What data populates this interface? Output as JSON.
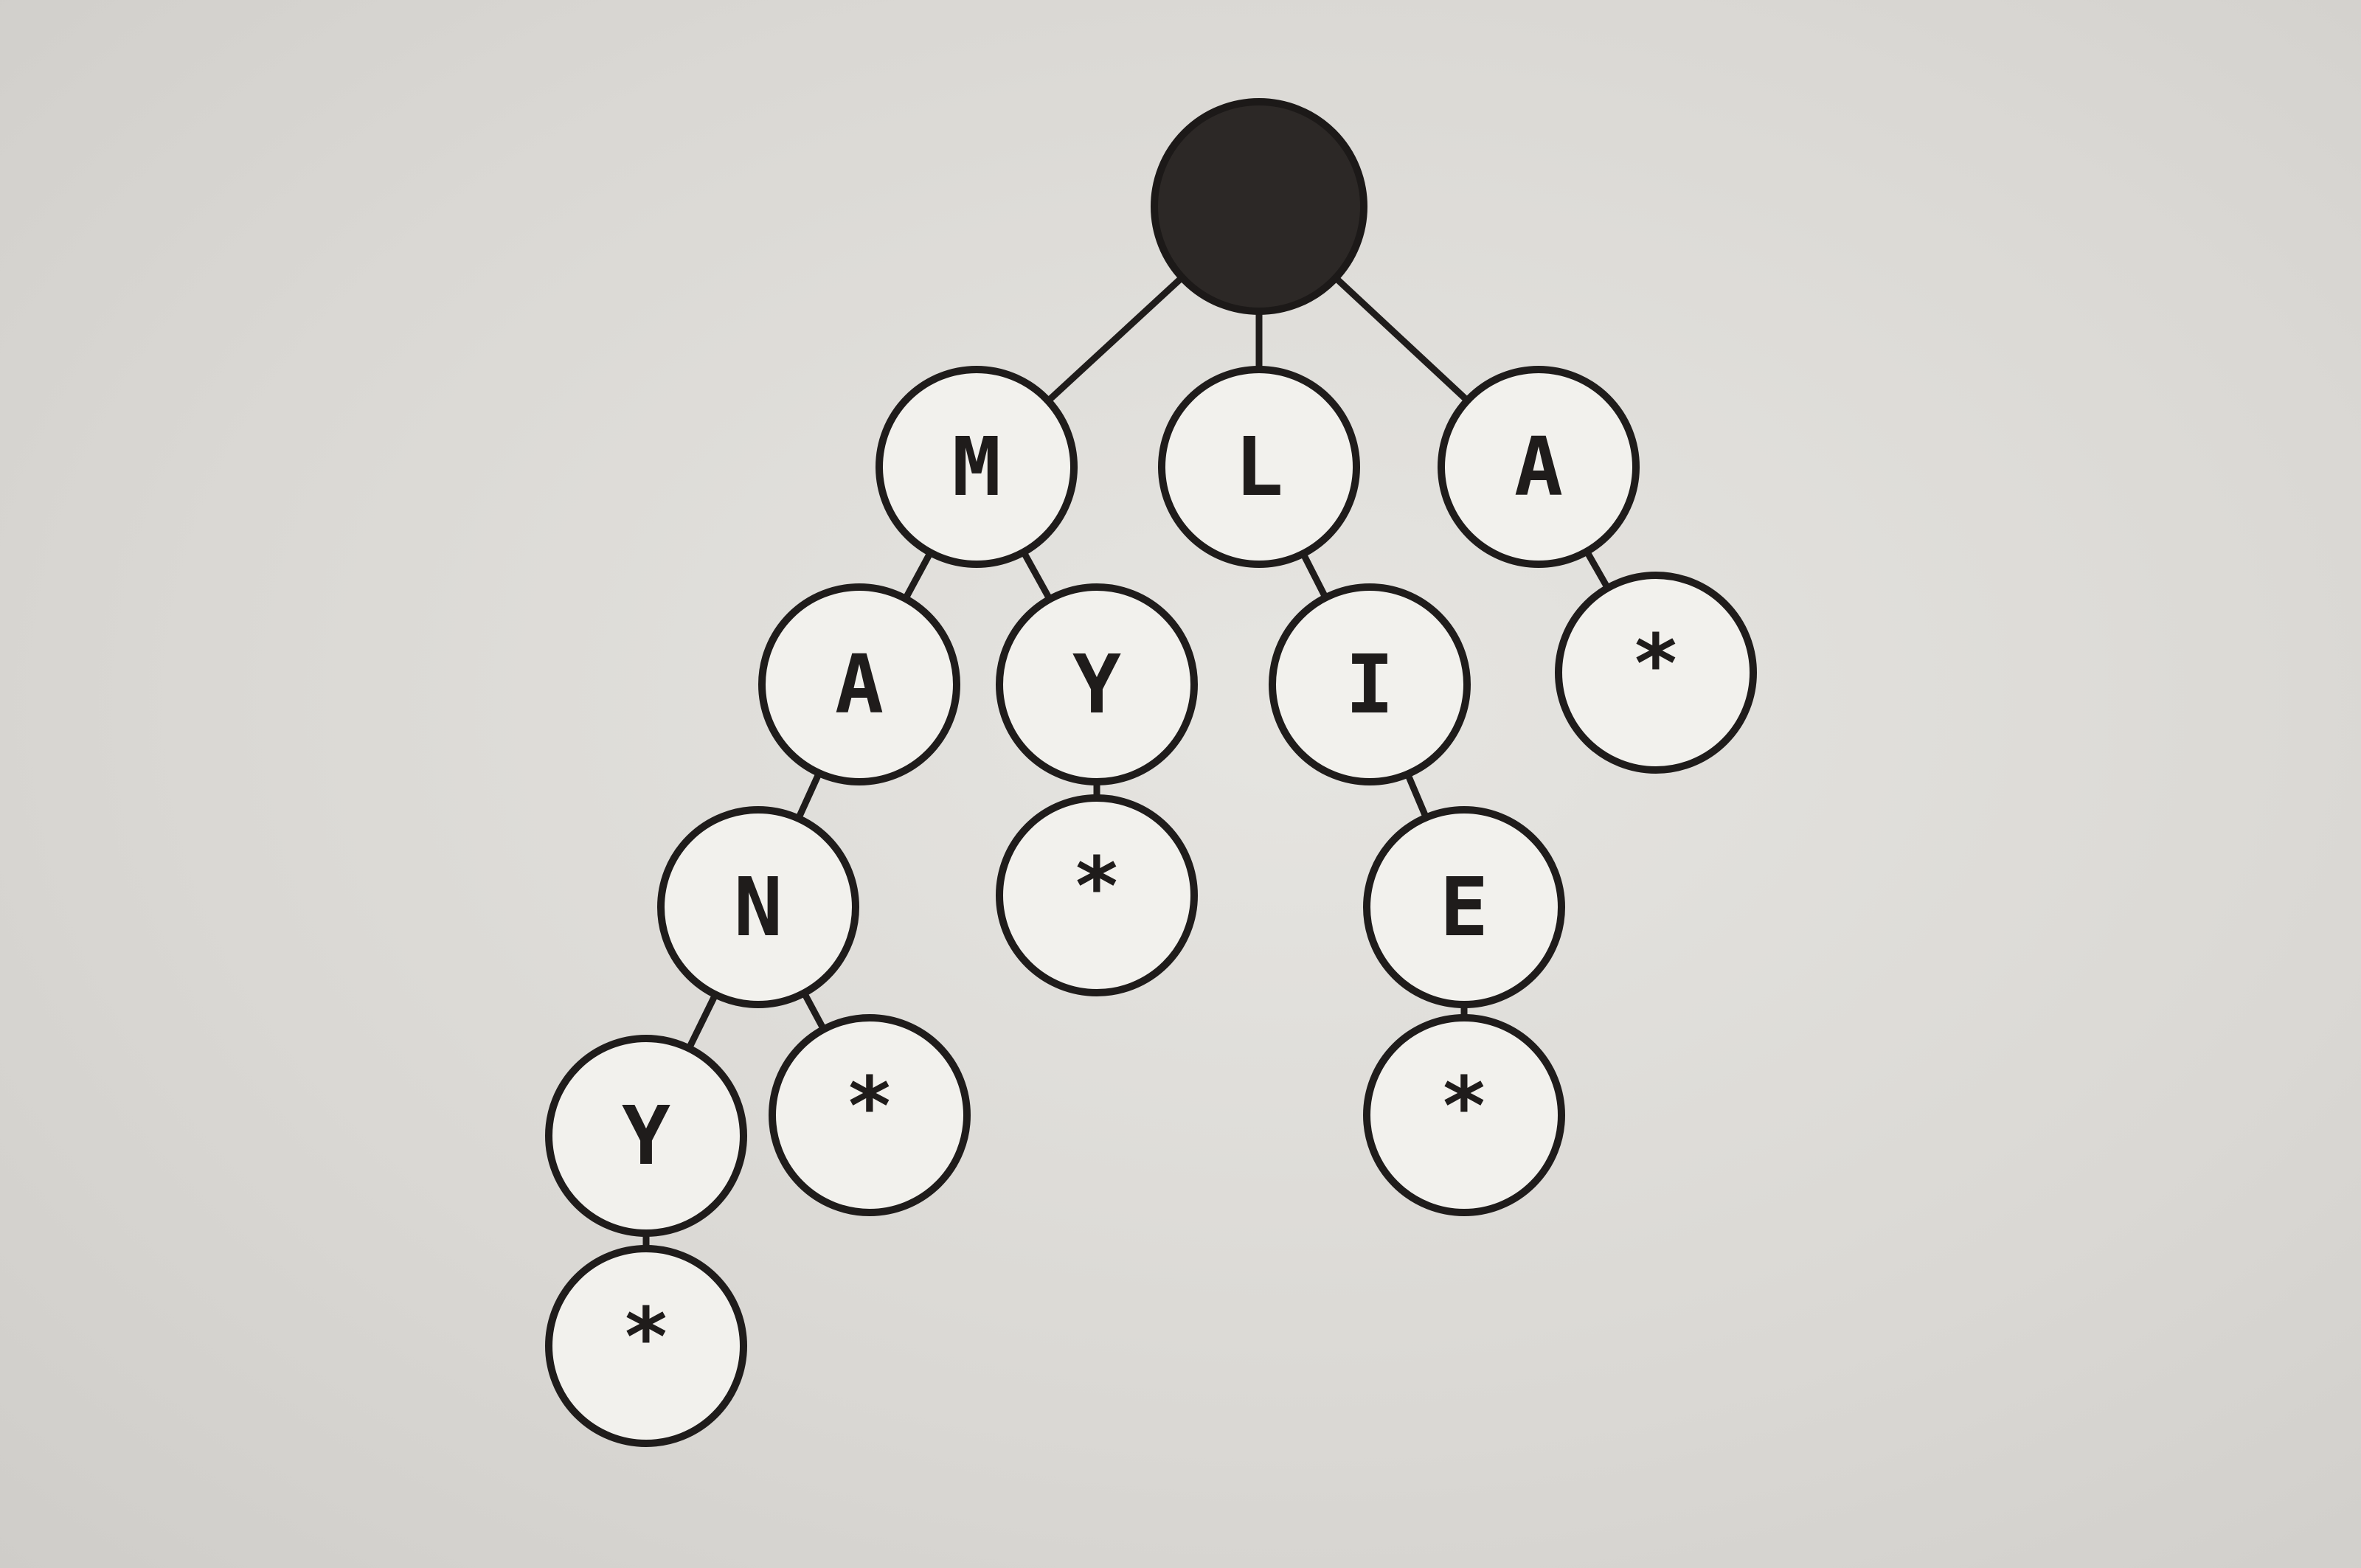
{
  "diagram": {
    "type": "trie",
    "nodes": [
      {
        "id": "root",
        "label": "",
        "parent": null,
        "filled": true
      },
      {
        "id": "m",
        "label": "M",
        "parent": "root"
      },
      {
        "id": "l",
        "label": "L",
        "parent": "root"
      },
      {
        "id": "a1",
        "label": "A",
        "parent": "root"
      },
      {
        "id": "m_a",
        "label": "A",
        "parent": "m"
      },
      {
        "id": "m_y",
        "label": "Y",
        "parent": "m"
      },
      {
        "id": "l_i",
        "label": "I",
        "parent": "l"
      },
      {
        "id": "a1_end",
        "label": "*",
        "parent": "a1"
      },
      {
        "id": "m_a_n",
        "label": "N",
        "parent": "m_a"
      },
      {
        "id": "m_y_end",
        "label": "*",
        "parent": "m_y"
      },
      {
        "id": "l_i_e",
        "label": "E",
        "parent": "l_i"
      },
      {
        "id": "m_a_n_y",
        "label": "Y",
        "parent": "m_a_n"
      },
      {
        "id": "m_a_n_end",
        "label": "*",
        "parent": "m_a_n"
      },
      {
        "id": "l_i_e_end",
        "label": "*",
        "parent": "l_i_e"
      },
      {
        "id": "m_a_n_y_end",
        "label": "*",
        "parent": "m_a_n_y"
      }
    ]
  }
}
